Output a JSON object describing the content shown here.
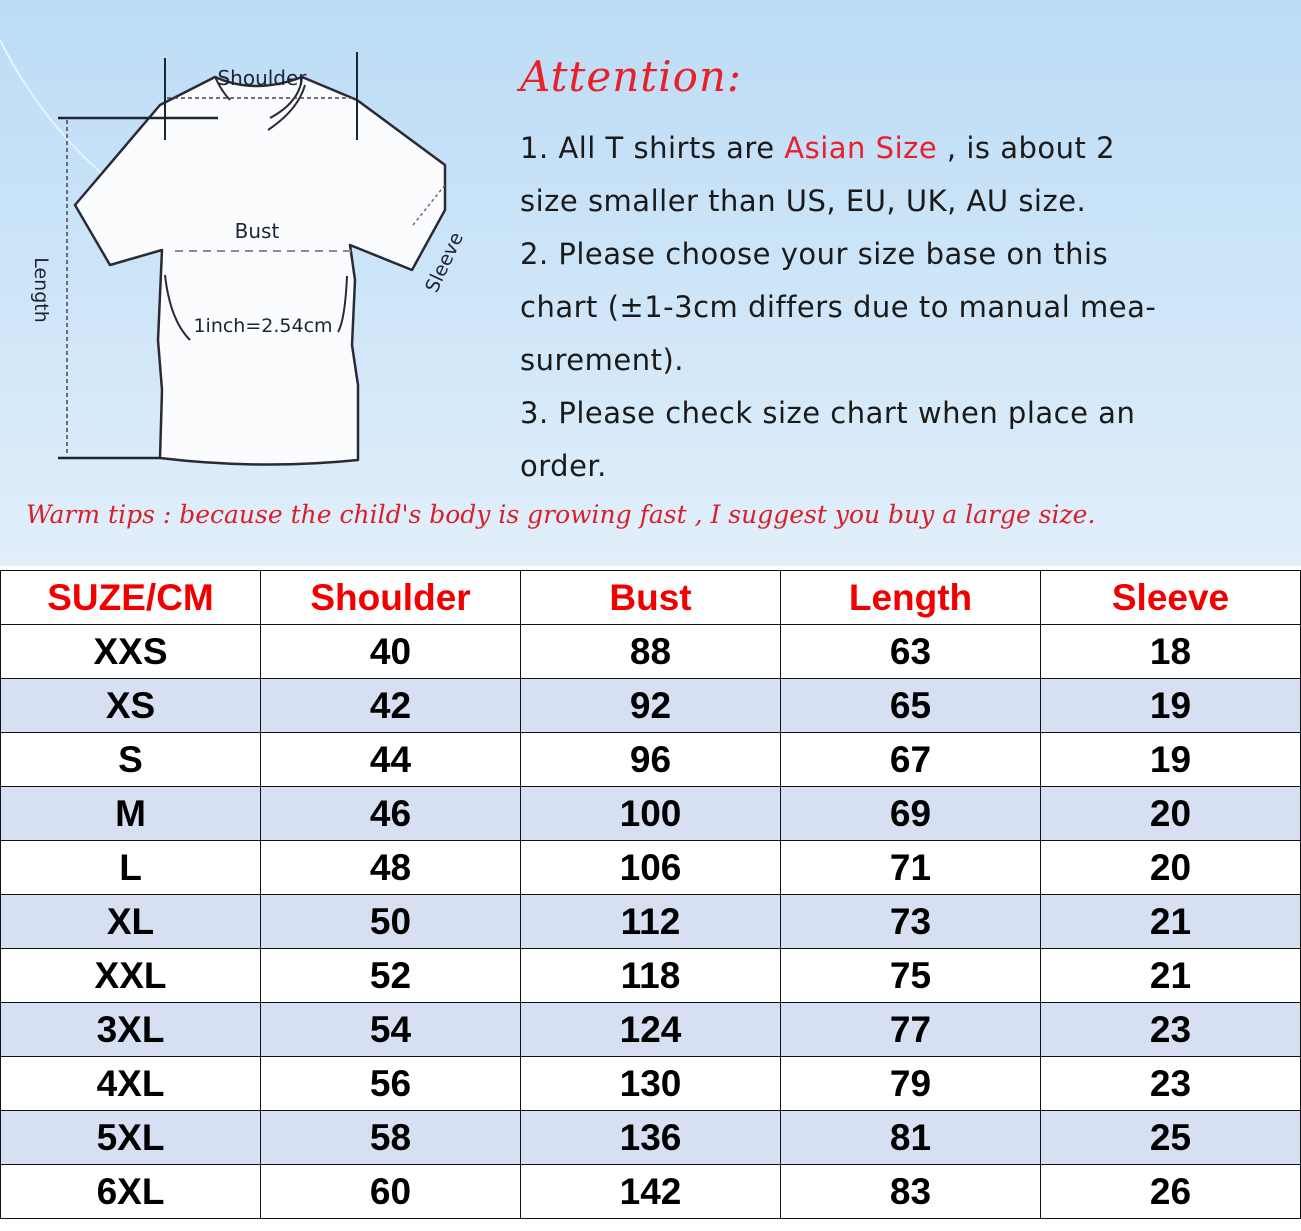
{
  "diagram": {
    "shoulder_label": "Shoulder",
    "bust_label": "Bust",
    "length_label": "Length",
    "sleeve_label": "Sleeve",
    "conversion": "1inch=2.54cm"
  },
  "attention": {
    "title": "Attention:",
    "line1_a": "1. All T shirts are ",
    "line1_highlight": "Asian Size",
    "line1_b": " , is about 2",
    "line2": "size smaller than US, EU, UK, AU size.",
    "line3": "2. Please choose your size base on this",
    "line4": "chart (±1-3cm differs due to manual mea-",
    "line5": "surement).",
    "line6": "3. Please check size chart when place an",
    "line7": "order.",
    "warm_tips": "Warm tips : because the child's body is growing fast , I suggest you buy a large size."
  },
  "colors": {
    "accent_red": "#e8202a",
    "header_red": "#f20000",
    "alt_row": "#d6e0f2",
    "banner_blue": "#bcdcf6"
  },
  "table": {
    "headers": [
      "SUZE/CM",
      "Shoulder",
      "Bust",
      "Length",
      "Sleeve"
    ],
    "rows": [
      [
        "XXS",
        "40",
        "88",
        "63",
        "18"
      ],
      [
        "XS",
        "42",
        "92",
        "65",
        "19"
      ],
      [
        "S",
        "44",
        "96",
        "67",
        "19"
      ],
      [
        "M",
        "46",
        "100",
        "69",
        "20"
      ],
      [
        "L",
        "48",
        "106",
        "71",
        "20"
      ],
      [
        "XL",
        "50",
        "112",
        "73",
        "21"
      ],
      [
        "XXL",
        "52",
        "118",
        "75",
        "21"
      ],
      [
        "3XL",
        "54",
        "124",
        "77",
        "23"
      ],
      [
        "4XL",
        "56",
        "130",
        "79",
        "23"
      ],
      [
        "5XL",
        "58",
        "136",
        "81",
        "25"
      ],
      [
        "6XL",
        "60",
        "142",
        "83",
        "26"
      ]
    ]
  }
}
